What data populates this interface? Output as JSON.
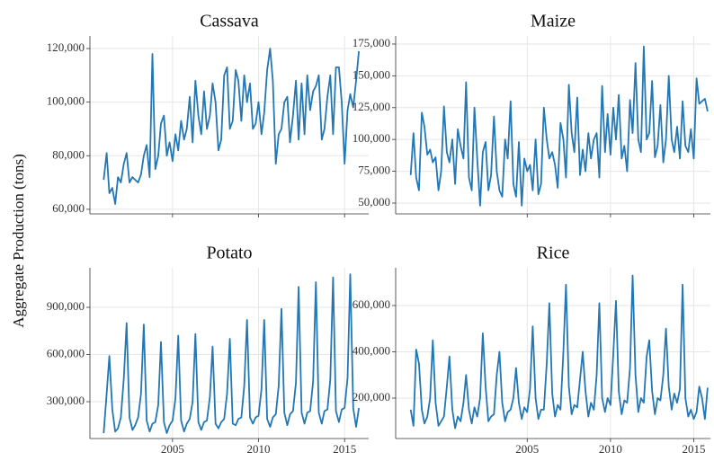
{
  "ylabel": "Aggregate Production (tons)",
  "chart_data": [
    {
      "type": "line",
      "title": "Cassava",
      "color": "#2277b4",
      "grid": true,
      "xlim": [
        2000.2,
        2016.4
      ],
      "xticks": [
        2005,
        2010,
        2015
      ],
      "ylim": [
        58300,
        124700
      ],
      "yticks": [
        {
          "value": 60000,
          "label": "60,000"
        },
        {
          "value": 80000,
          "label": "80,000"
        },
        {
          "value": 100000,
          "label": "100,000"
        },
        {
          "value": 120000,
          "label": "120,000"
        }
      ],
      "x": [
        2001,
        2001.17,
        2001.33,
        2001.5,
        2001.67,
        2001.83,
        2002,
        2002.17,
        2002.33,
        2002.5,
        2002.67,
        2002.83,
        2003,
        2003.17,
        2003.33,
        2003.5,
        2003.67,
        2003.83,
        2004,
        2004.17,
        2004.33,
        2004.5,
        2004.67,
        2004.83,
        2005,
        2005.17,
        2005.33,
        2005.5,
        2005.67,
        2005.83,
        2006,
        2006.17,
        2006.33,
        2006.5,
        2006.67,
        2006.83,
        2007,
        2007.17,
        2007.33,
        2007.5,
        2007.67,
        2007.83,
        2008,
        2008.17,
        2008.33,
        2008.5,
        2008.67,
        2008.83,
        2009,
        2009.17,
        2009.33,
        2009.5,
        2009.67,
        2009.83,
        2010,
        2010.17,
        2010.33,
        2010.5,
        2010.67,
        2010.83,
        2011,
        2011.17,
        2011.33,
        2011.5,
        2011.67,
        2011.83,
        2012,
        2012.17,
        2012.33,
        2012.5,
        2012.67,
        2012.83,
        2013,
        2013.17,
        2013.33,
        2013.5,
        2013.67,
        2013.83,
        2014,
        2014.17,
        2014.33,
        2014.5,
        2014.67,
        2014.83,
        2015,
        2015.17,
        2015.33,
        2015.5,
        2015.67,
        2015.83
      ],
      "values": [
        71000,
        81000,
        66000,
        68000,
        62000,
        72000,
        70000,
        77000,
        81000,
        70000,
        72000,
        71000,
        70000,
        73000,
        80000,
        84000,
        72000,
        118000,
        75000,
        80000,
        92000,
        95000,
        80000,
        85000,
        78000,
        88000,
        82000,
        93000,
        86000,
        90000,
        102000,
        85000,
        108000,
        95000,
        88000,
        104000,
        90000,
        95000,
        107000,
        100000,
        82000,
        86000,
        110000,
        113000,
        90000,
        93000,
        112000,
        108000,
        93000,
        110000,
        100000,
        107000,
        90000,
        92000,
        100000,
        88000,
        96000,
        112000,
        120000,
        108000,
        77000,
        88000,
        90000,
        100000,
        102000,
        85000,
        95000,
        108000,
        86000,
        107000,
        88000,
        110000,
        97000,
        104000,
        106000,
        110000,
        86000,
        90000,
        102000,
        110000,
        88000,
        113000,
        113000,
        100000,
        77000,
        97000,
        103000,
        98000,
        108000,
        119000
      ]
    },
    {
      "type": "line",
      "title": "Maize",
      "color": "#2277b4",
      "grid": true,
      "xlim": [
        1997.1,
        2016.0
      ],
      "xticks": [
        2005,
        2010,
        2015
      ],
      "ylim": [
        41500,
        181350
      ],
      "yticks": [
        {
          "value": 50000,
          "label": "50,000"
        },
        {
          "value": 75000,
          "label": "75,000"
        },
        {
          "value": 100000,
          "label": "100,000"
        },
        {
          "value": 125000,
          "label": "125,000"
        },
        {
          "value": 150000,
          "label": "150,000"
        },
        {
          "value": 175000,
          "label": "175,000"
        }
      ],
      "x": [
        1998,
        1998.17,
        1998.33,
        1998.5,
        1998.67,
        1998.83,
        1999,
        1999.17,
        1999.33,
        1999.5,
        1999.67,
        1999.83,
        2000,
        2000.17,
        2000.33,
        2000.5,
        2000.67,
        2000.83,
        2001,
        2001.17,
        2001.33,
        2001.5,
        2001.67,
        2001.83,
        2002,
        2002.17,
        2002.33,
        2002.5,
        2002.67,
        2002.83,
        2003,
        2003.17,
        2003.33,
        2003.5,
        2003.67,
        2003.83,
        2004,
        2004.17,
        2004.33,
        2004.5,
        2004.67,
        2004.83,
        2005,
        2005.17,
        2005.33,
        2005.5,
        2005.67,
        2005.83,
        2006,
        2006.17,
        2006.33,
        2006.5,
        2006.67,
        2006.83,
        2007,
        2007.17,
        2007.33,
        2007.5,
        2007.67,
        2007.83,
        2008,
        2008.17,
        2008.33,
        2008.5,
        2008.67,
        2008.83,
        2009,
        2009.17,
        2009.33,
        2009.5,
        2009.67,
        2009.83,
        2010,
        2010.17,
        2010.33,
        2010.5,
        2010.67,
        2010.83,
        2011,
        2011.17,
        2011.33,
        2011.5,
        2011.67,
        2011.83,
        2012,
        2012.17,
        2012.33,
        2012.5,
        2012.67,
        2012.83,
        2013,
        2013.17,
        2013.33,
        2013.5,
        2013.67,
        2013.83,
        2014,
        2014.17,
        2014.33,
        2014.5,
        2014.67,
        2014.83,
        2015,
        2015.17,
        2015.33,
        2015.5,
        2015.67,
        2015.83
      ],
      "values": [
        72000,
        105000,
        70000,
        60000,
        121000,
        110000,
        88000,
        92000,
        82000,
        86000,
        60000,
        75000,
        126000,
        90000,
        82000,
        100000,
        65000,
        108000,
        95000,
        85000,
        145000,
        70000,
        60000,
        125000,
        85000,
        48000,
        90000,
        98000,
        60000,
        72000,
        118000,
        75000,
        60000,
        55000,
        100000,
        85000,
        130000,
        65000,
        55000,
        98000,
        48000,
        85000,
        75000,
        80000,
        60000,
        100000,
        57000,
        65000,
        125000,
        100000,
        85000,
        90000,
        80000,
        62000,
        113000,
        100000,
        70000,
        143000,
        105000,
        90000,
        133000,
        72000,
        92000,
        75000,
        105000,
        85000,
        100000,
        105000,
        70000,
        142000,
        90000,
        120000,
        88000,
        125000,
        100000,
        135000,
        85000,
        95000,
        75000,
        131000,
        105000,
        160000,
        100000,
        90000,
        173000,
        100000,
        105000,
        146000,
        86000,
        95000,
        127000,
        82000,
        100000,
        150000,
        100000,
        90000,
        110000,
        85000,
        130000,
        95000,
        90000,
        108000,
        85000,
        148000,
        128000,
        130000,
        132000,
        122000
      ]
    },
    {
      "type": "line",
      "title": "Potato",
      "color": "#2277b4",
      "grid": true,
      "xlim": [
        2000.2,
        2016.4
      ],
      "xticks": [
        2005,
        2010,
        2015
      ],
      "ylim": [
        65700,
        1151400
      ],
      "yticks": [
        {
          "value": 300000,
          "label": "300,000"
        },
        {
          "value": 600000,
          "label": "600,000"
        },
        {
          "value": 900000,
          "label": "900,000"
        }
      ],
      "x": [
        2001,
        2001.17,
        2001.33,
        2001.5,
        2001.67,
        2001.83,
        2002,
        2002.17,
        2002.33,
        2002.5,
        2002.67,
        2002.83,
        2003,
        2003.17,
        2003.33,
        2003.5,
        2003.67,
        2003.83,
        2004,
        2004.17,
        2004.33,
        2004.5,
        2004.67,
        2004.83,
        2005,
        2005.17,
        2005.33,
        2005.5,
        2005.67,
        2005.83,
        2006,
        2006.17,
        2006.33,
        2006.5,
        2006.67,
        2006.83,
        2007,
        2007.17,
        2007.33,
        2007.5,
        2007.67,
        2007.83,
        2008,
        2008.17,
        2008.33,
        2008.5,
        2008.67,
        2008.83,
        2009,
        2009.17,
        2009.33,
        2009.5,
        2009.67,
        2009.83,
        2010,
        2010.17,
        2010.33,
        2010.5,
        2010.67,
        2010.83,
        2011,
        2011.17,
        2011.33,
        2011.5,
        2011.67,
        2011.83,
        2012,
        2012.17,
        2012.33,
        2012.5,
        2012.67,
        2012.83,
        2013,
        2013.17,
        2013.33,
        2013.5,
        2013.67,
        2013.83,
        2014,
        2014.17,
        2014.33,
        2014.5,
        2014.67,
        2014.83,
        2015,
        2015.17,
        2015.33,
        2015.5,
        2015.67,
        2015.83
      ],
      "values": [
        100000,
        350000,
        590000,
        250000,
        110000,
        130000,
        200000,
        450000,
        800000,
        200000,
        120000,
        150000,
        200000,
        350000,
        790000,
        180000,
        110000,
        160000,
        170000,
        280000,
        680000,
        170000,
        100000,
        150000,
        180000,
        320000,
        720000,
        180000,
        110000,
        160000,
        190000,
        300000,
        730000,
        170000,
        120000,
        170000,
        180000,
        330000,
        650000,
        160000,
        130000,
        170000,
        190000,
        350000,
        700000,
        160000,
        150000,
        190000,
        200000,
        400000,
        820000,
        200000,
        160000,
        200000,
        210000,
        380000,
        820000,
        190000,
        140000,
        200000,
        220000,
        400000,
        890000,
        230000,
        150000,
        220000,
        240000,
        420000,
        1030000,
        230000,
        160000,
        230000,
        240000,
        430000,
        1060000,
        230000,
        160000,
        240000,
        250000,
        440000,
        1090000,
        240000,
        170000,
        250000,
        260000,
        450000,
        1110000,
        260000,
        140000,
        260000
      ]
    },
    {
      "type": "line",
      "title": "Rice",
      "color": "#2277b4",
      "grid": true,
      "xlim": [
        1997.1,
        2016.0
      ],
      "xticks": [
        2005,
        2010,
        2015
      ],
      "ylim": [
        25250,
        763100
      ],
      "yticks": [
        {
          "value": 200000,
          "label": "200,000"
        },
        {
          "value": 400000,
          "label": "400,000"
        },
        {
          "value": 600000,
          "label": "600,000"
        }
      ],
      "x": [
        1998,
        1998.17,
        1998.33,
        1998.5,
        1998.67,
        1998.83,
        1999,
        1999.17,
        1999.33,
        1999.5,
        1999.67,
        1999.83,
        2000,
        2000.17,
        2000.33,
        2000.5,
        2000.67,
        2000.83,
        2001,
        2001.17,
        2001.33,
        2001.5,
        2001.67,
        2001.83,
        2002,
        2002.17,
        2002.33,
        2002.5,
        2002.67,
        2002.83,
        2003,
        2003.17,
        2003.33,
        2003.5,
        2003.67,
        2003.83,
        2004,
        2004.17,
        2004.33,
        2004.5,
        2004.67,
        2004.83,
        2005,
        2005.17,
        2005.33,
        2005.5,
        2005.67,
        2005.83,
        2006,
        2006.17,
        2006.33,
        2006.5,
        2006.67,
        2006.83,
        2007,
        2007.17,
        2007.33,
        2007.5,
        2007.67,
        2007.83,
        2008,
        2008.17,
        2008.33,
        2008.5,
        2008.67,
        2008.83,
        2009,
        2009.17,
        2009.33,
        2009.5,
        2009.67,
        2009.83,
        2010,
        2010.17,
        2010.33,
        2010.5,
        2010.67,
        2010.83,
        2011,
        2011.17,
        2011.33,
        2011.5,
        2011.67,
        2011.83,
        2012,
        2012.17,
        2012.33,
        2012.5,
        2012.67,
        2012.83,
        2013,
        2013.17,
        2013.33,
        2013.5,
        2013.67,
        2013.83,
        2014,
        2014.17,
        2014.33,
        2014.5,
        2014.67,
        2014.83,
        2015,
        2015.17,
        2015.33,
        2015.5,
        2015.67,
        2015.83
      ],
      "values": [
        150000,
        80000,
        410000,
        350000,
        150000,
        90000,
        120000,
        200000,
        450000,
        180000,
        80000,
        100000,
        120000,
        250000,
        380000,
        150000,
        70000,
        120000,
        100000,
        180000,
        300000,
        150000,
        90000,
        160000,
        120000,
        200000,
        480000,
        250000,
        100000,
        120000,
        130000,
        300000,
        400000,
        180000,
        100000,
        140000,
        150000,
        200000,
        330000,
        180000,
        110000,
        160000,
        140000,
        240000,
        510000,
        200000,
        110000,
        150000,
        150000,
        350000,
        610000,
        220000,
        120000,
        170000,
        150000,
        400000,
        690000,
        250000,
        130000,
        170000,
        160000,
        280000,
        400000,
        230000,
        120000,
        180000,
        150000,
        300000,
        610000,
        200000,
        140000,
        200000,
        170000,
        390000,
        620000,
        230000,
        130000,
        190000,
        180000,
        330000,
        730000,
        300000,
        140000,
        200000,
        180000,
        380000,
        450000,
        230000,
        130000,
        200000,
        190000,
        300000,
        500000,
        250000,
        150000,
        220000,
        180000,
        240000,
        690000,
        200000,
        120000,
        150000,
        110000,
        140000,
        250000,
        200000,
        110000,
        245000
      ]
    }
  ]
}
